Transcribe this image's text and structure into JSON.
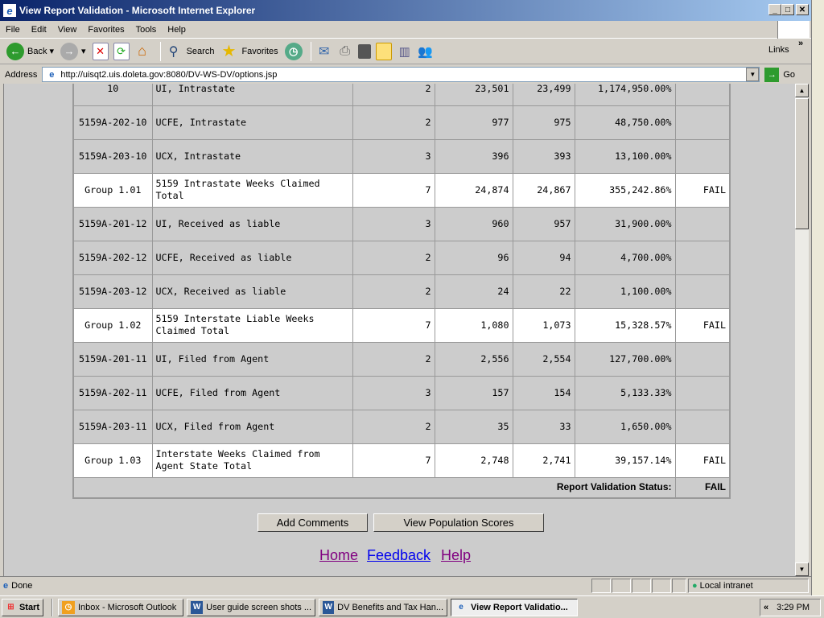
{
  "window": {
    "title": "View Report Validation - Microsoft Internet Explorer"
  },
  "menu": [
    "File",
    "Edit",
    "View",
    "Favorites",
    "Tools",
    "Help"
  ],
  "toolbar": {
    "back": "Back",
    "search": "Search",
    "favorites": "Favorites",
    "links": "Links"
  },
  "address": {
    "label": "Address",
    "url": "http://uisqt2.uis.doleta.gov:8080/DV-WS-DV/options.jsp",
    "go": "Go"
  },
  "table": {
    "rows": [
      {
        "type": "item",
        "id": "10",
        "desc": "UI, Intrastate",
        "n": "2",
        "a": "23,501",
        "b": "23,499",
        "pct": "1,174,950.00%",
        "status": ""
      },
      {
        "type": "item",
        "id": "5159A-202-10",
        "desc": "UCFE, Intrastate",
        "n": "2",
        "a": "977",
        "b": "975",
        "pct": "48,750.00%",
        "status": ""
      },
      {
        "type": "item",
        "id": "5159A-203-10",
        "desc": "UCX, Intrastate",
        "n": "3",
        "a": "396",
        "b": "393",
        "pct": "13,100.00%",
        "status": ""
      },
      {
        "type": "group",
        "id": "Group 1.01",
        "desc": "5159 Intrastate Weeks Claimed Total",
        "n": "7",
        "a": "24,874",
        "b": "24,867",
        "pct": "355,242.86%",
        "status": "FAIL"
      },
      {
        "type": "item",
        "id": "5159A-201-12",
        "desc": "UI, Received as liable",
        "n": "3",
        "a": "960",
        "b": "957",
        "pct": "31,900.00%",
        "status": ""
      },
      {
        "type": "item",
        "id": "5159A-202-12",
        "desc": "UCFE, Received as liable",
        "n": "2",
        "a": "96",
        "b": "94",
        "pct": "4,700.00%",
        "status": ""
      },
      {
        "type": "item",
        "id": "5159A-203-12",
        "desc": "UCX, Received as liable",
        "n": "2",
        "a": "24",
        "b": "22",
        "pct": "1,100.00%",
        "status": ""
      },
      {
        "type": "group",
        "id": "Group 1.02",
        "desc": "5159 Interstate Liable Weeks Claimed Total",
        "n": "7",
        "a": "1,080",
        "b": "1,073",
        "pct": "15,328.57%",
        "status": "FAIL"
      },
      {
        "type": "item",
        "id": "5159A-201-11",
        "desc": "UI, Filed from Agent",
        "n": "2",
        "a": "2,556",
        "b": "2,554",
        "pct": "127,700.00%",
        "status": ""
      },
      {
        "type": "item",
        "id": "5159A-202-11",
        "desc": "UCFE, Filed from Agent",
        "n": "3",
        "a": "157",
        "b": "154",
        "pct": "5,133.33%",
        "status": ""
      },
      {
        "type": "item",
        "id": "5159A-203-11",
        "desc": "UCX, Filed from Agent",
        "n": "2",
        "a": "35",
        "b": "33",
        "pct": "1,650.00%",
        "status": ""
      },
      {
        "type": "group",
        "id": "Group 1.03",
        "desc": "Interstate Weeks Claimed from Agent State Total",
        "n": "7",
        "a": "2,748",
        "b": "2,741",
        "pct": "39,157.14%",
        "status": "FAIL"
      }
    ],
    "status_label": "Report Validation Status:",
    "status_value": "FAIL"
  },
  "buttons": {
    "add_comments": "Add Comments",
    "view_population": "View Population Scores"
  },
  "links": {
    "home": "Home",
    "feedback": "Feedback",
    "help": "Help"
  },
  "statusbar": {
    "text": "Done",
    "zone": "Local intranet"
  },
  "taskbar": {
    "start": "Start",
    "tasks": [
      "Inbox - Microsoft Outlook",
      "User guide screen shots ...",
      "DV Benefits and Tax Han...",
      "View Report Validatio..."
    ],
    "clock": "3:29 PM"
  }
}
